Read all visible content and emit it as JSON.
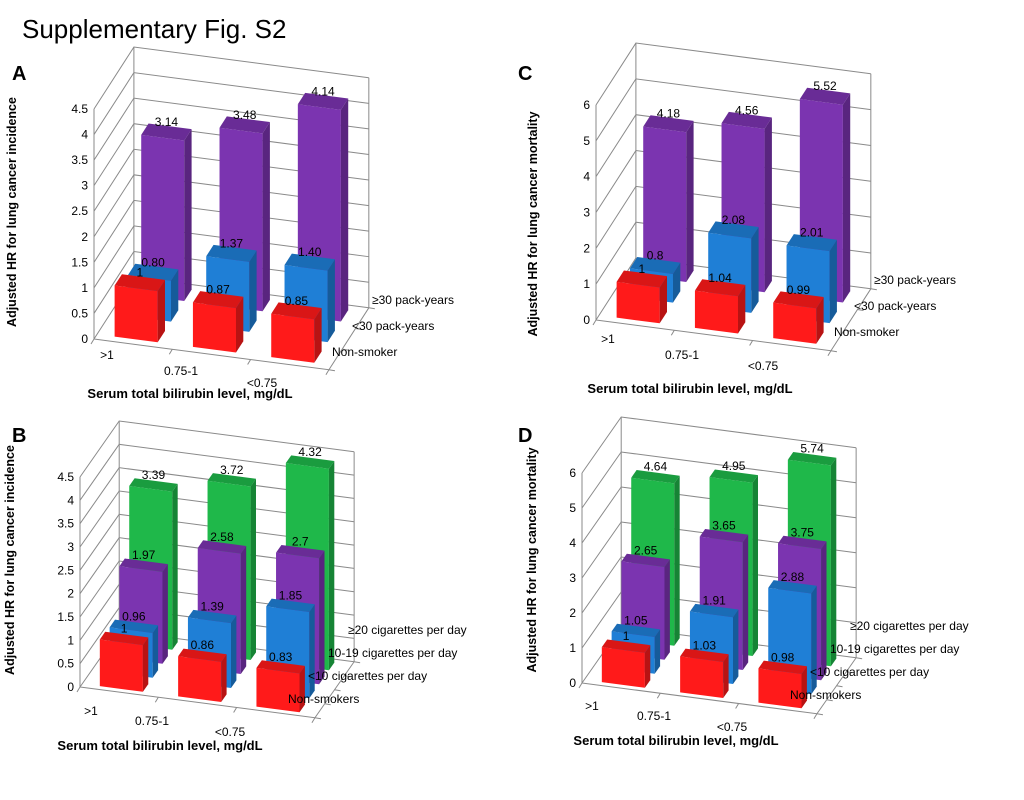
{
  "figure_title": "Supplementary Fig. S2",
  "chart_data": [
    {
      "panel": "A",
      "type": "bar3d",
      "ylabel": "Adjusted HR for lung cancer incidence",
      "xlabel": "Serum total bilirubin level, mg/dL",
      "categories": [
        ">1",
        "0.75-1",
        "<0.75"
      ],
      "yticks": [
        "0",
        "0.5",
        "1",
        "1.5",
        "2",
        "2.5",
        "3",
        "3.5",
        "4",
        "4.5"
      ],
      "ylim": [
        0,
        4.5
      ],
      "series": [
        {
          "name": "Non-smoker",
          "color": "#ff1a1a",
          "values": [
            1,
            0.87,
            0.85
          ],
          "labels": [
            "1",
            "0.87",
            "0.85"
          ]
        },
        {
          "name": "<30 pack-years",
          "color": "#1f7fd6",
          "values": [
            0.8,
            1.37,
            1.4
          ],
          "labels": [
            "0.80",
            "1.37",
            "1.40"
          ]
        },
        {
          "name": "≥30 pack-years",
          "color": "#7b34b0",
          "values": [
            3.14,
            3.48,
            4.14
          ],
          "labels": [
            "3.14",
            "3.48",
            "4.14"
          ]
        }
      ]
    },
    {
      "panel": "C",
      "type": "bar3d",
      "ylabel": "Adjusted HR for lung cancer mortality",
      "xlabel": "Serum total bilirubin level, mg/dL",
      "categories": [
        ">1",
        "0.75-1",
        "<0.75"
      ],
      "yticks": [
        "0",
        "1",
        "2",
        "3",
        "4",
        "5",
        "6"
      ],
      "ylim": [
        0,
        6
      ],
      "series": [
        {
          "name": "Non-smoker",
          "color": "#ff1a1a",
          "values": [
            1,
            1.04,
            0.99
          ],
          "labels": [
            "1",
            "1.04",
            "0.99"
          ]
        },
        {
          "name": "<30 pack-years",
          "color": "#1f7fd6",
          "values": [
            0.8,
            2.08,
            2.01
          ],
          "labels": [
            "0.8",
            "2.08",
            "2.01"
          ]
        },
        {
          "name": "≥30 pack-years",
          "color": "#7b34b0",
          "values": [
            4.18,
            4.56,
            5.52
          ],
          "labels": [
            "4.18",
            "4.56",
            "5.52"
          ]
        }
      ]
    },
    {
      "panel": "B",
      "type": "bar3d",
      "ylabel": "Adjusted HR for lung cancer incidence",
      "xlabel": "Serum total bilirubin level, mg/dL",
      "categories": [
        ">1",
        "0.75-1",
        "<0.75"
      ],
      "yticks": [
        "0",
        "0.5",
        "1",
        "1.5",
        "2",
        "2.5",
        "3",
        "3.5",
        "4",
        "4.5"
      ],
      "ylim": [
        0,
        4.5
      ],
      "series": [
        {
          "name": "Non-smokers",
          "color": "#ff1a1a",
          "values": [
            1,
            0.86,
            0.83
          ],
          "labels": [
            "1",
            "0.86",
            "0.83"
          ]
        },
        {
          "name": "<10 cigarettes per day",
          "color": "#1f7fd6",
          "values": [
            0.96,
            1.39,
            1.85
          ],
          "labels": [
            "0.96",
            "1.39",
            "1.85"
          ]
        },
        {
          "name": "10-19 cigarettes per day",
          "color": "#7b34b0",
          "values": [
            1.97,
            2.58,
            2.7
          ],
          "labels": [
            "1.97",
            "2.58",
            "2.7"
          ]
        },
        {
          "name": "≥20 cigarettes per day",
          "color": "#1fb84a",
          "values": [
            3.39,
            3.72,
            4.32
          ],
          "labels": [
            "3.39",
            "3.72",
            "4.32"
          ]
        }
      ]
    },
    {
      "panel": "D",
      "type": "bar3d",
      "ylabel": "Adjusted HR for lung cancer mortality",
      "xlabel": "Serum total bilirubin level, mg/dL",
      "categories": [
        ">1",
        "0.75-1",
        "<0.75"
      ],
      "yticks": [
        "0",
        "1",
        "2",
        "3",
        "4",
        "5",
        "6"
      ],
      "ylim": [
        0,
        6
      ],
      "series": [
        {
          "name": "Non-smokers",
          "color": "#ff1a1a",
          "values": [
            1,
            1.03,
            0.98
          ],
          "labels": [
            "1",
            "1.03",
            "0.98"
          ]
        },
        {
          "name": "<10 cigarettes per day",
          "color": "#1f7fd6",
          "values": [
            1.05,
            1.91,
            2.88
          ],
          "labels": [
            "1.05",
            "1.91",
            "2.88"
          ]
        },
        {
          "name": "10-19 cigarettes per day",
          "color": "#7b34b0",
          "values": [
            2.65,
            3.65,
            3.75
          ],
          "labels": [
            "2.65",
            "3.65",
            "3.75"
          ]
        },
        {
          "name": "≥20 cigarettes per day",
          "color": "#1fb84a",
          "values": [
            4.64,
            4.95,
            5.74
          ],
          "labels": [
            "4.64",
            "4.95",
            "5.74"
          ]
        }
      ]
    }
  ]
}
